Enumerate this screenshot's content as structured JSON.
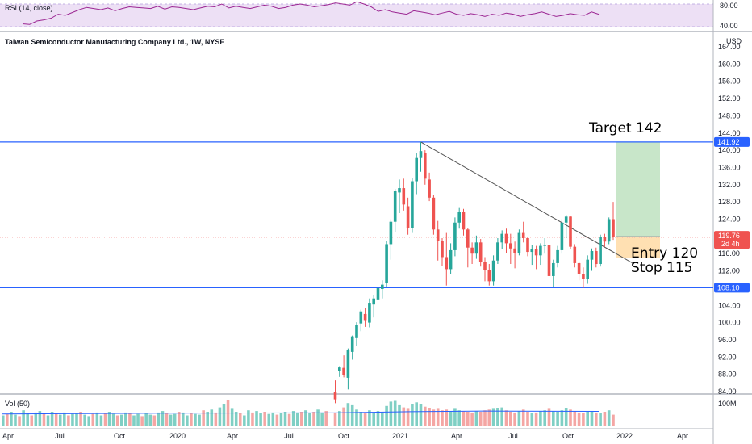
{
  "colors": {
    "up": "#26a69a",
    "down": "#ef5350",
    "upVol": "#7fcfc4",
    "downVol": "#f4a6a4",
    "hline": "#2962ff",
    "rsi": "#9c2793",
    "rsiBand": "#ede0f5",
    "target": "#c8e6c9",
    "stop": "#ffe0b2",
    "trend": "#555555"
  },
  "chart_data": {
    "type": "candlestick",
    "title": "Taiwan Semiconductor Manufacturing Company Ltd., 1W, NYSE",
    "currency": "USD",
    "y_ticks": [
      "164.00",
      "160.00",
      "156.00",
      "152.00",
      "148.00",
      "144.00",
      "140.00",
      "136.00",
      "132.00",
      "128.00",
      "124.00",
      "120.00",
      "116.00",
      "112.00",
      "108.00",
      "104.00",
      "100.00",
      "96.00",
      "92.00",
      "88.00",
      "84.00"
    ],
    "x_ticks": [
      "Apr",
      "Jul",
      "Oct",
      "2020",
      "Apr",
      "Jul",
      "Oct",
      "2021",
      "Apr",
      "Jul",
      "Oct",
      "2022",
      "Apr"
    ],
    "rsi": {
      "label": "RSI (14, close)",
      "ticks": [
        "80.00",
        "40.00"
      ],
      "values": [
        45,
        44,
        50,
        52,
        55,
        62,
        60,
        65,
        70,
        74,
        72,
        70,
        73,
        68,
        72,
        75,
        74,
        73,
        72,
        76,
        71,
        75,
        74,
        72,
        70,
        73,
        76,
        75,
        80,
        73,
        76,
        74,
        72,
        75,
        78,
        76,
        72,
        74,
        78,
        80,
        78,
        75,
        77,
        79,
        82,
        80,
        78,
        84,
        80,
        75,
        67,
        70,
        66,
        64,
        62,
        68,
        66,
        64,
        61,
        64,
        67,
        62,
        60,
        63,
        61,
        58,
        62,
        60,
        64,
        62,
        58,
        61,
        63,
        66,
        62,
        58,
        60,
        63,
        61,
        60,
        66,
        62
      ]
    },
    "volume": {
      "label": "Vol (50)",
      "tick": "100M"
    },
    "candles": [
      [
        84.0,
        86.6,
        81.3,
        82.2
      ],
      [
        88.8,
        89.9,
        87.4,
        89.6
      ],
      [
        89.5,
        92.4,
        87.3,
        87.8
      ],
      [
        87.2,
        94.0,
        84.5,
        93.6
      ],
      [
        93.2,
        97.0,
        91.4,
        96.8
      ],
      [
        96.4,
        100.1,
        94.6,
        99.4
      ],
      [
        99.8,
        103.0,
        98.0,
        102.6
      ],
      [
        102.0,
        103.4,
        99.0,
        100.4
      ],
      [
        100.0,
        105.6,
        98.9,
        104.6
      ],
      [
        104.2,
        106.3,
        101.2,
        105.6
      ],
      [
        105.2,
        108.6,
        103.0,
        108.0
      ],
      [
        107.8,
        109.8,
        105.6,
        108.8
      ],
      [
        109.2,
        119.0,
        108.2,
        118.2
      ],
      [
        118.2,
        124.0,
        114.6,
        123.4
      ],
      [
        123.4,
        131.0,
        121.0,
        130.6
      ],
      [
        130.2,
        133.2,
        125.4,
        131.2
      ],
      [
        131.2,
        133.4,
        126.0,
        127.4
      ],
      [
        127.0,
        129.0,
        120.4,
        122.0
      ],
      [
        122.0,
        133.6,
        120.8,
        132.8
      ],
      [
        132.8,
        139.4,
        129.8,
        138.2
      ],
      [
        138.2,
        141.9,
        135.0,
        139.8
      ],
      [
        139.4,
        140.0,
        132.0,
        133.4
      ],
      [
        133.2,
        134.8,
        128.2,
        129.0
      ],
      [
        129.0,
        129.6,
        120.4,
        121.6
      ],
      [
        121.6,
        123.6,
        114.4,
        119.0
      ],
      [
        119.0,
        119.6,
        113.2,
        115.2
      ],
      [
        115.2,
        120.8,
        108.6,
        112.4
      ],
      [
        112.4,
        118.4,
        111.2,
        116.8
      ],
      [
        116.8,
        124.4,
        115.4,
        123.2
      ],
      [
        123.2,
        126.6,
        121.8,
        125.6
      ],
      [
        125.6,
        126.4,
        120.2,
        121.6
      ],
      [
        121.6,
        122.0,
        112.8,
        117.4
      ],
      [
        117.4,
        118.6,
        113.6,
        116.0
      ],
      [
        116.0,
        120.2,
        114.8,
        118.6
      ],
      [
        118.6,
        119.4,
        113.0,
        114.0
      ],
      [
        114.0,
        115.2,
        109.6,
        112.2
      ],
      [
        112.2,
        113.6,
        108.6,
        109.6
      ],
      [
        109.6,
        115.6,
        108.6,
        114.4
      ],
      [
        114.4,
        119.6,
        113.6,
        118.6
      ],
      [
        118.6,
        121.4,
        117.0,
        120.6
      ],
      [
        120.6,
        121.8,
        116.2,
        118.4
      ],
      [
        118.4,
        120.6,
        113.6,
        117.2
      ],
      [
        117.2,
        118.8,
        112.6,
        116.2
      ],
      [
        116.2,
        121.6,
        115.6,
        120.8
      ],
      [
        120.8,
        123.4,
        118.6,
        119.6
      ],
      [
        119.6,
        119.8,
        115.4,
        116.4
      ],
      [
        116.4,
        118.0,
        113.4,
        117.0
      ],
      [
        117.0,
        117.8,
        112.4,
        115.6
      ],
      [
        115.6,
        118.4,
        113.4,
        117.8
      ],
      [
        117.8,
        119.6,
        116.0,
        118.0
      ],
      [
        118.0,
        118.6,
        109.0,
        110.8
      ],
      [
        110.8,
        114.6,
        108.2,
        113.8
      ],
      [
        113.8,
        117.8,
        112.8,
        116.8
      ],
      [
        116.8,
        124.0,
        116.0,
        123.2
      ],
      [
        123.2,
        125.0,
        119.6,
        124.6
      ],
      [
        124.6,
        124.8,
        117.0,
        117.6
      ],
      [
        117.6,
        118.2,
        112.8,
        113.8
      ],
      [
        113.8,
        114.2,
        109.8,
        111.2
      ],
      [
        111.2,
        112.8,
        108.0,
        110.2
      ],
      [
        110.2,
        115.6,
        109.0,
        114.6
      ],
      [
        114.6,
        117.2,
        112.0,
        116.6
      ],
      [
        116.6,
        117.4,
        112.8,
        113.6
      ],
      [
        113.6,
        120.4,
        113.0,
        119.8
      ],
      [
        119.8,
        120.6,
        117.6,
        118.8
      ],
      [
        118.8,
        124.4,
        118.2,
        124.0
      ],
      [
        124.0,
        128.0,
        119.2,
        119.8
      ]
    ],
    "volumes": [
      38,
      42,
      52,
      64,
      58,
      46,
      40,
      36,
      44,
      38,
      42,
      40,
      56,
      68,
      70,
      58,
      52,
      48,
      62,
      66,
      60,
      54,
      50,
      46,
      48,
      44,
      46,
      42,
      48,
      44,
      42,
      40,
      38,
      42,
      40,
      44,
      46,
      48,
      50,
      52,
      44,
      40,
      38,
      42,
      46,
      40,
      36,
      38,
      42,
      44,
      48,
      42,
      40,
      44,
      50,
      46,
      42,
      38,
      36,
      40,
      42,
      38,
      36,
      40,
      44,
      32
    ],
    "early_volumes": [
      30,
      34,
      40,
      32,
      28,
      44,
      36,
      30,
      38,
      42,
      34,
      30,
      40,
      36,
      32,
      38,
      30,
      34,
      36,
      40,
      32,
      28,
      34,
      38,
      30,
      36,
      40,
      34,
      30,
      32,
      38,
      36,
      30,
      34,
      28,
      36,
      32,
      30,
      38,
      42,
      36,
      32,
      34,
      40,
      38,
      30,
      36,
      34,
      32,
      44,
      40,
      46,
      38,
      52,
      60,
      72,
      48,
      40,
      36,
      30,
      44,
      38,
      42,
      36,
      40,
      34,
      38,
      32,
      36,
      40,
      34,
      42,
      38,
      40,
      44,
      36,
      40,
      46,
      38,
      42
    ],
    "levels": {
      "resistance": {
        "value": 141.92,
        "label": "141.92"
      },
      "support": {
        "value": 108.1,
        "label": "108.10"
      },
      "current": {
        "value": 119.76,
        "label": "119.76",
        "sublabel": "2d 4h"
      }
    },
    "annotations": {
      "target": "Target 142",
      "entry": "Entry 120",
      "stop": "Stop 115"
    },
    "position": {
      "target": 142.0,
      "entry": 120.0,
      "stop": 115.0
    }
  }
}
